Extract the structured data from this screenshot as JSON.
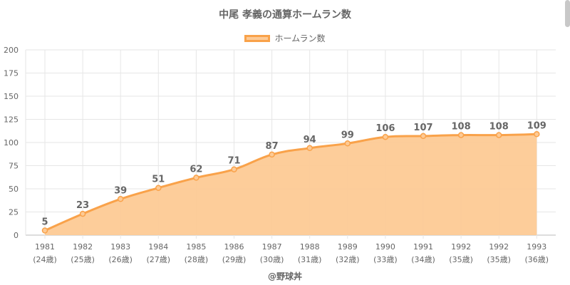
{
  "title": "中尾 孝義の通算ホームラン数",
  "legend": {
    "label": "ホームラン数",
    "fill": "#fdca95",
    "stroke": "#f9a24a"
  },
  "credit": "@野球丼",
  "chart_data": {
    "type": "area",
    "title": "中尾 孝義の通算ホームラン数",
    "xlabel": "",
    "ylabel": "",
    "ylim": [
      0,
      200
    ],
    "yticks": [
      0,
      25,
      50,
      75,
      100,
      125,
      150,
      175,
      200
    ],
    "grid": true,
    "legend_position": "top",
    "categories": [
      [
        "1981",
        "(24歳)"
      ],
      [
        "1982",
        "(25歳)"
      ],
      [
        "1983",
        "(26歳)"
      ],
      [
        "1984",
        "(27歳)"
      ],
      [
        "1985",
        "(28歳)"
      ],
      [
        "1986",
        "(29歳)"
      ],
      [
        "1987",
        "(30歳)"
      ],
      [
        "1988",
        "(31歳)"
      ],
      [
        "1989",
        "(32歳)"
      ],
      [
        "1990",
        "(33歳)"
      ],
      [
        "1991",
        "(34歳)"
      ],
      [
        "1992",
        "(35歳)"
      ],
      [
        "1992",
        "(35歳)"
      ],
      [
        "1993",
        "(36歳)"
      ]
    ],
    "series": [
      {
        "name": "ホームラン数",
        "values": [
          5,
          23,
          39,
          51,
          62,
          71,
          87,
          94,
          99,
          106,
          107,
          108,
          108,
          109
        ],
        "color": "#f9a24a",
        "fill": "#fdca95"
      }
    ]
  }
}
